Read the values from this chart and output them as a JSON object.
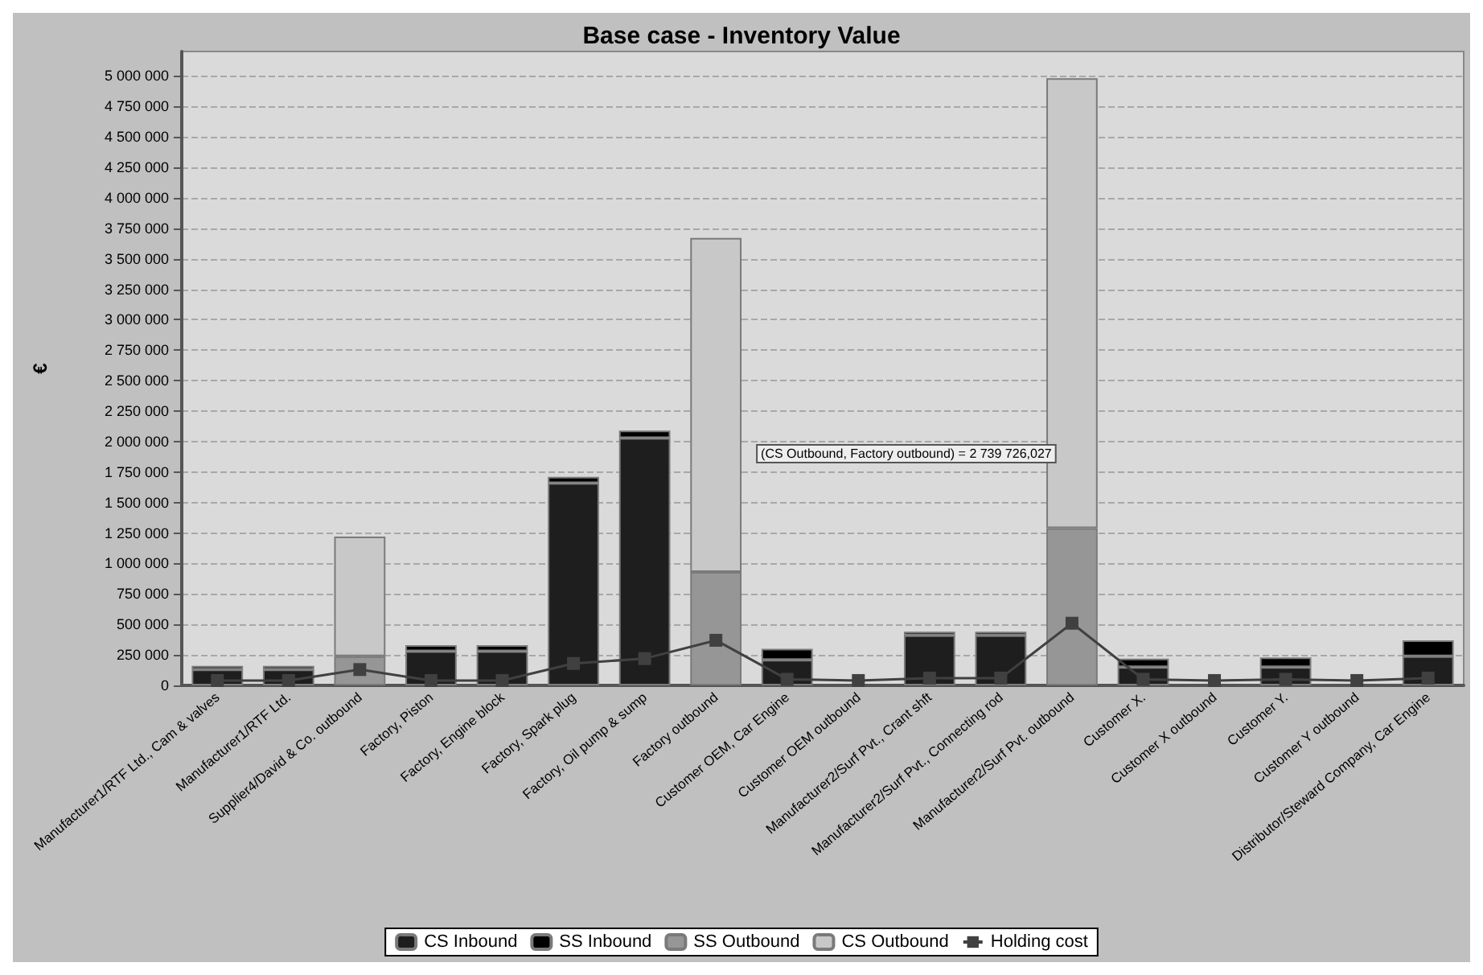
{
  "chart_data": {
    "type": "bar",
    "title": "Base case - Inventory Value",
    "ylabel": "€",
    "stacked": true,
    "grid": "y",
    "legend": "bottom",
    "marker": "square",
    "categories": [
      "Manufacturer1/RTF Ltd., Cam & valves",
      "Manufacturer1/RTF Ltd.",
      "Supplier4/David & Co. outbound",
      "Factory, Piston",
      "Factory, Engine block",
      "Factory, Spark plug",
      "Factory, Oil pump & sump",
      "Factory outbound",
      "Customer OEM, Car Engine",
      "Customer OEM outbound",
      "Manufacturer2/Surf Pvt., Crant shft",
      "Manufacturer2/Surf Pvt., Connecting rod",
      "Manufacturer2/Surf Pvt. outbound",
      "Customer X.",
      "Customer X outbound",
      "Customer Y.",
      "Customer Y outbound",
      "Distributor/Steward Company, Car Engine"
    ],
    "series": [
      {
        "name": "CS Inbound",
        "color": "#1e1e1e",
        "values": [
          130000,
          130000,
          0,
          280000,
          280000,
          1660000,
          2030000,
          0,
          210000,
          0,
          410000,
          410000,
          0,
          150000,
          0,
          150000,
          0,
          240000
        ]
      },
      {
        "name": "SS Inbound",
        "color": "#000000",
        "values": [
          30000,
          30000,
          0,
          50000,
          50000,
          50000,
          60000,
          0,
          90000,
          0,
          30000,
          30000,
          0,
          70000,
          0,
          80000,
          0,
          130000
        ]
      },
      {
        "name": "SS Outbound",
        "color": "#969696",
        "values": [
          0,
          0,
          240000,
          0,
          0,
          0,
          0,
          930000,
          0,
          0,
          0,
          0,
          1290000,
          0,
          0,
          0,
          0,
          0
        ]
      },
      {
        "name": "CS Outbound",
        "color": "#c8c8c8",
        "values": [
          0,
          0,
          980000,
          0,
          0,
          0,
          0,
          2740000,
          0,
          null,
          0,
          0,
          3690000,
          0,
          null,
          0,
          null,
          0
        ]
      },
      {
        "name": "Holding cost",
        "type": "line",
        "color": "#404040",
        "values": [
          40000,
          40000,
          130000,
          40000,
          40000,
          180000,
          220000,
          370000,
          50000,
          40000,
          60000,
          60000,
          510000,
          50000,
          40000,
          50000,
          40000,
          60000
        ]
      }
    ],
    "ylim": [
      0,
      5200000
    ],
    "yticks": [
      {
        "value": 0,
        "label": "0"
      },
      {
        "value": 250000,
        "label": "250 000"
      },
      {
        "value": 500000,
        "label": "500 000"
      },
      {
        "value": 750000,
        "label": "750 000"
      },
      {
        "value": 1000000,
        "label": "1 000 000"
      },
      {
        "value": 1250000,
        "label": "1 250 000"
      },
      {
        "value": 1500000,
        "label": "1 500 000"
      },
      {
        "value": 1750000,
        "label": "1 750 000"
      },
      {
        "value": 2000000,
        "label": "2 000 000"
      },
      {
        "value": 2250000,
        "label": "2 250 000"
      },
      {
        "value": 2500000,
        "label": "2 500 000"
      },
      {
        "value": 2750000,
        "label": "2 750 000"
      },
      {
        "value": 3000000,
        "label": "3 000 000"
      },
      {
        "value": 3250000,
        "label": "3 250 000"
      },
      {
        "value": 3500000,
        "label": "3 500 000"
      },
      {
        "value": 3750000,
        "label": "3 750 000"
      },
      {
        "value": 4000000,
        "label": "4 000 000"
      },
      {
        "value": 4250000,
        "label": "4 250 000"
      },
      {
        "value": 4500000,
        "label": "4 500 000"
      },
      {
        "value": 4750000,
        "label": "4 750 000"
      },
      {
        "value": 5000000,
        "label": "5 000 000"
      }
    ],
    "annotations": [
      "(CS Outbound, Factory outbound) = 2 739 726,027"
    ]
  }
}
